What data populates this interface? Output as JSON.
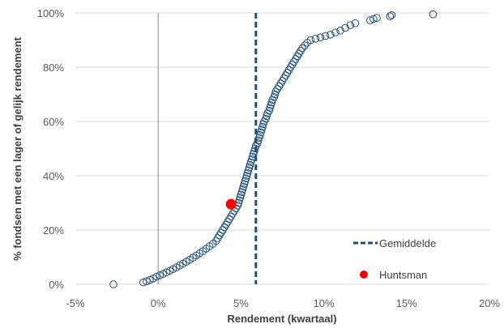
{
  "chart_data": {
    "type": "scatter",
    "title": "",
    "xlabel": "Rendement (kwartaal)",
    "ylabel": "% fondsen met een lager of gelijk rendement",
    "xlim": [
      -5,
      20
    ],
    "ylim": [
      0,
      100
    ],
    "x_ticks": [
      "-5%",
      "0%",
      "5%",
      "10%",
      "15%",
      "20%"
    ],
    "y_ticks": [
      "0%",
      "20%",
      "40%",
      "60%",
      "80%",
      "100%"
    ],
    "grid": "horizontal",
    "legend_position": "bottom-right",
    "colors": {
      "funds": "#1f4e79",
      "mean": "#1f4e79",
      "highlight": "#ff0000",
      "grid": "#d9d9d9"
    },
    "series": [
      {
        "name": "",
        "marker": "open-circle",
        "points": [
          [
            -2.7,
            0.0
          ],
          [
            -0.9,
            0.7
          ],
          [
            -0.7,
            1.1
          ],
          [
            -0.5,
            1.6
          ],
          [
            -0.3,
            2.1
          ],
          [
            -0.1,
            2.8
          ],
          [
            0.1,
            3.3
          ],
          [
            0.3,
            3.8
          ],
          [
            0.5,
            4.4
          ],
          [
            0.7,
            5.0
          ],
          [
            0.9,
            5.6
          ],
          [
            1.1,
            6.2
          ],
          [
            1.3,
            6.9
          ],
          [
            1.5,
            7.6
          ],
          [
            1.7,
            8.3
          ],
          [
            1.9,
            9.0
          ],
          [
            2.1,
            9.8
          ],
          [
            2.3,
            10.6
          ],
          [
            2.5,
            11.4
          ],
          [
            2.7,
            12.2
          ],
          [
            2.9,
            13.1
          ],
          [
            3.1,
            14.0
          ],
          [
            3.3,
            14.9
          ],
          [
            3.5,
            16.0
          ],
          [
            3.6,
            17.0
          ],
          [
            3.7,
            18.0
          ],
          [
            3.8,
            19.0
          ],
          [
            3.9,
            20.0
          ],
          [
            4.0,
            21.0
          ],
          [
            4.1,
            22.0
          ],
          [
            4.2,
            23.0
          ],
          [
            4.3,
            24.0
          ],
          [
            4.4,
            25.0
          ],
          [
            4.5,
            26.0
          ],
          [
            4.6,
            27.0
          ],
          [
            4.7,
            28.0
          ],
          [
            4.8,
            29.0
          ],
          [
            4.85,
            30.0
          ],
          [
            4.9,
            31.0
          ],
          [
            4.95,
            32.0
          ],
          [
            5.0,
            33.0
          ],
          [
            5.05,
            34.0
          ],
          [
            5.1,
            35.0
          ],
          [
            5.15,
            36.0
          ],
          [
            5.2,
            37.0
          ],
          [
            5.25,
            38.0
          ],
          [
            5.3,
            39.0
          ],
          [
            5.35,
            40.0
          ],
          [
            5.4,
            41.0
          ],
          [
            5.45,
            42.0
          ],
          [
            5.5,
            43.0
          ],
          [
            5.55,
            44.0
          ],
          [
            5.6,
            45.0
          ],
          [
            5.65,
            46.0
          ],
          [
            5.7,
            47.0
          ],
          [
            5.75,
            48.0
          ],
          [
            5.8,
            49.0
          ],
          [
            5.85,
            50.0
          ],
          [
            5.9,
            51.0
          ],
          [
            6.0,
            52.0
          ],
          [
            6.05,
            53.0
          ],
          [
            6.1,
            54.0
          ],
          [
            6.15,
            55.0
          ],
          [
            6.2,
            56.0
          ],
          [
            6.25,
            57.0
          ],
          [
            6.3,
            58.0
          ],
          [
            6.35,
            59.0
          ],
          [
            6.4,
            60.0
          ],
          [
            6.5,
            61.0
          ],
          [
            6.55,
            62.0
          ],
          [
            6.6,
            63.0
          ],
          [
            6.7,
            64.0
          ],
          [
            6.75,
            65.0
          ],
          [
            6.8,
            66.0
          ],
          [
            6.85,
            67.0
          ],
          [
            6.9,
            68.0
          ],
          [
            7.0,
            69.0
          ],
          [
            7.05,
            70.0
          ],
          [
            7.1,
            71.0
          ],
          [
            7.2,
            72.0
          ],
          [
            7.3,
            73.0
          ],
          [
            7.4,
            74.0
          ],
          [
            7.5,
            75.0
          ],
          [
            7.6,
            76.0
          ],
          [
            7.7,
            77.0
          ],
          [
            7.8,
            78.0
          ],
          [
            7.9,
            79.0
          ],
          [
            8.0,
            80.0
          ],
          [
            8.1,
            81.0
          ],
          [
            8.2,
            82.0
          ],
          [
            8.3,
            83.0
          ],
          [
            8.4,
            84.0
          ],
          [
            8.5,
            85.0
          ],
          [
            8.6,
            86.0
          ],
          [
            8.7,
            87.0
          ],
          [
            8.85,
            88.0
          ],
          [
            9.0,
            89.0
          ],
          [
            9.2,
            90.0
          ],
          [
            9.5,
            90.5
          ],
          [
            9.8,
            91.0
          ],
          [
            10.1,
            91.5
          ],
          [
            10.4,
            92.0
          ],
          [
            10.7,
            92.8
          ],
          [
            11.0,
            93.5
          ],
          [
            11.3,
            94.5
          ],
          [
            11.6,
            95.5
          ],
          [
            11.9,
            96.2
          ],
          [
            12.8,
            97.3
          ],
          [
            13.0,
            97.8
          ],
          [
            13.2,
            98.2
          ],
          [
            14.0,
            98.8
          ],
          [
            14.1,
            99.2
          ],
          [
            16.6,
            99.5
          ]
        ]
      },
      {
        "name": "Huntsman",
        "marker": "filled-circle",
        "points": [
          [
            4.4,
            29.5
          ]
        ]
      }
    ],
    "vertical_line": {
      "name": "Gemiddelde",
      "x": 5.9,
      "style": "dashed"
    },
    "legend": [
      {
        "label": "Gemiddelde",
        "symbol": "dashed-line"
      },
      {
        "label": "Huntsman",
        "symbol": "filled-circle"
      }
    ]
  }
}
